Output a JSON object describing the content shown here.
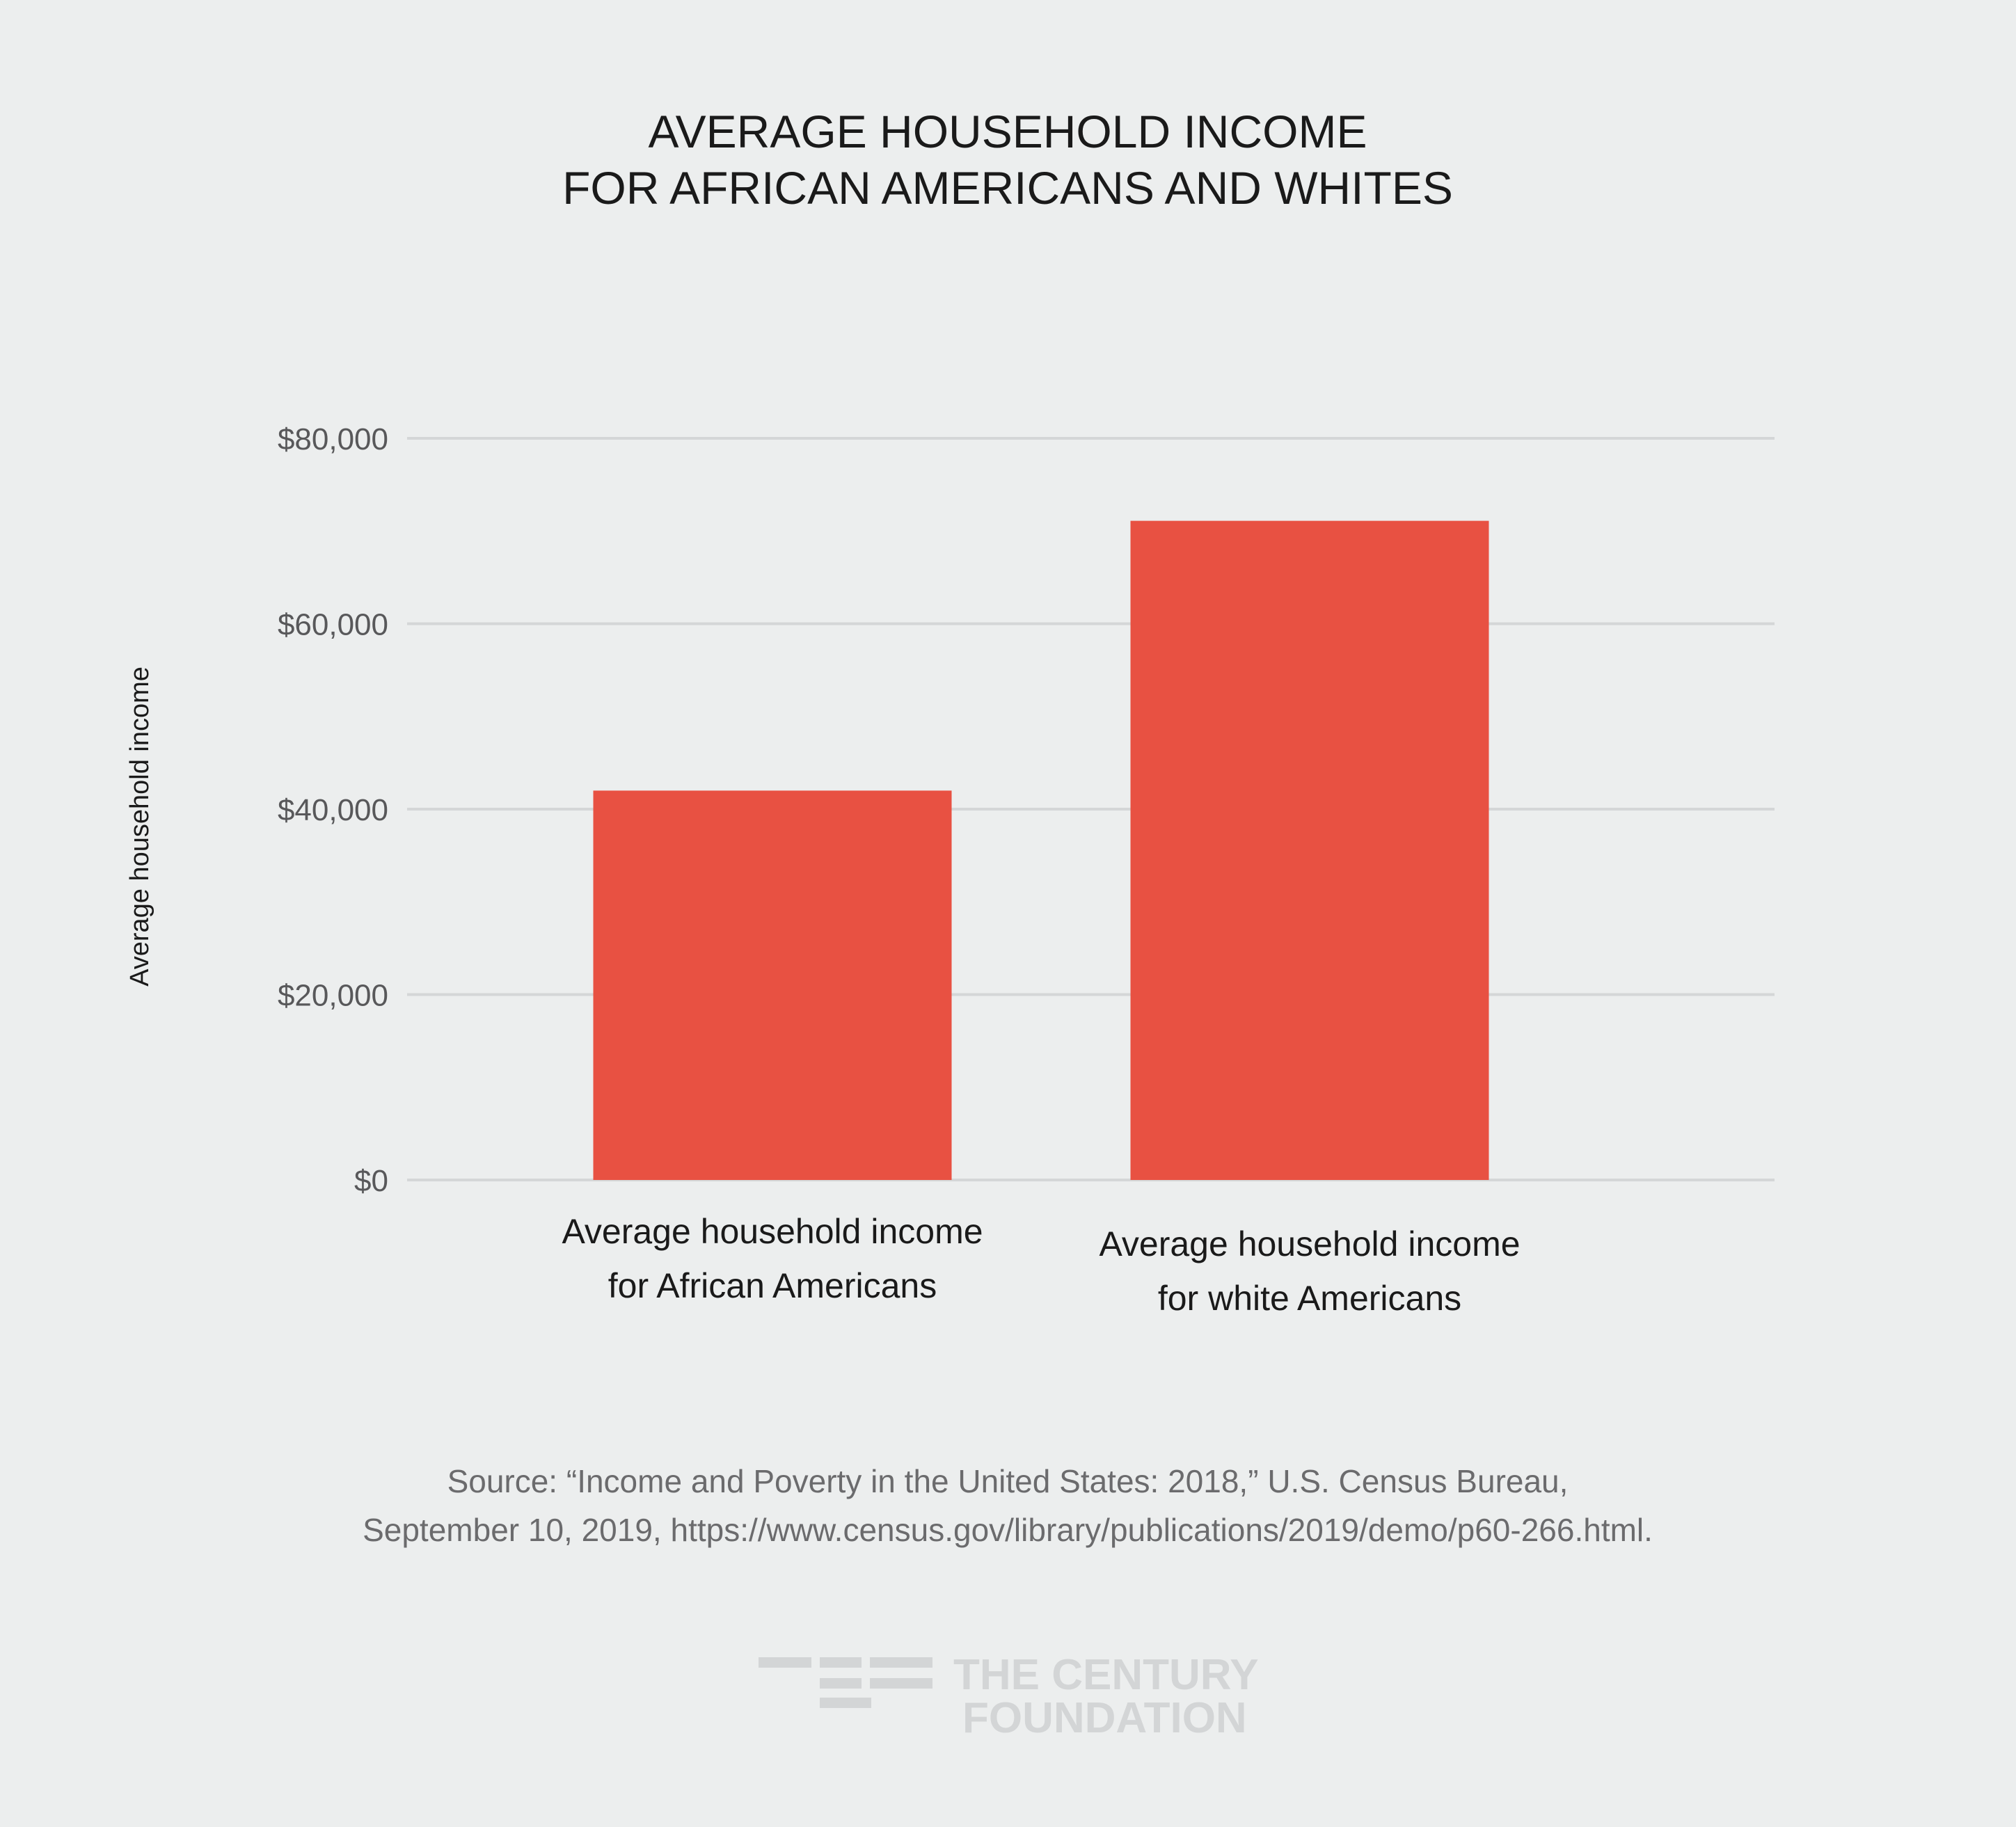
{
  "chart_data": {
    "type": "bar",
    "title_lines": [
      "AVERAGE HOUSEHOLD INCOME",
      "FOR AFRICAN AMERICANS AND WHITES"
    ],
    "xlabel": "",
    "ylabel": "Average household income",
    "ylim": [
      0,
      80000
    ],
    "yticks": [
      0,
      20000,
      40000,
      60000,
      80000
    ],
    "ytick_labels": [
      "$0",
      "$20,000",
      "$40,000",
      "$60,000",
      "$80,000"
    ],
    "grid": true,
    "categories": [
      [
        "Average household income",
        "for African Americans"
      ],
      [
        "Average household income",
        "for white Americans"
      ]
    ],
    "values": [
      42000,
      71100
    ],
    "bar_color": "#e85142",
    "grid_color": "#d4d6d7"
  },
  "source_lines": [
    "Source:  “Income and Poverty in the United States: 2018,” U.S. Census Bureau,",
    "September 10, 2019, https://www.census.gov/library/publications/2019/demo/p60-266.html."
  ],
  "logo": {
    "icon": "century-foundation-bars-icon",
    "lines": [
      "THE CENTURY",
      "FOUNDATION"
    ]
  }
}
